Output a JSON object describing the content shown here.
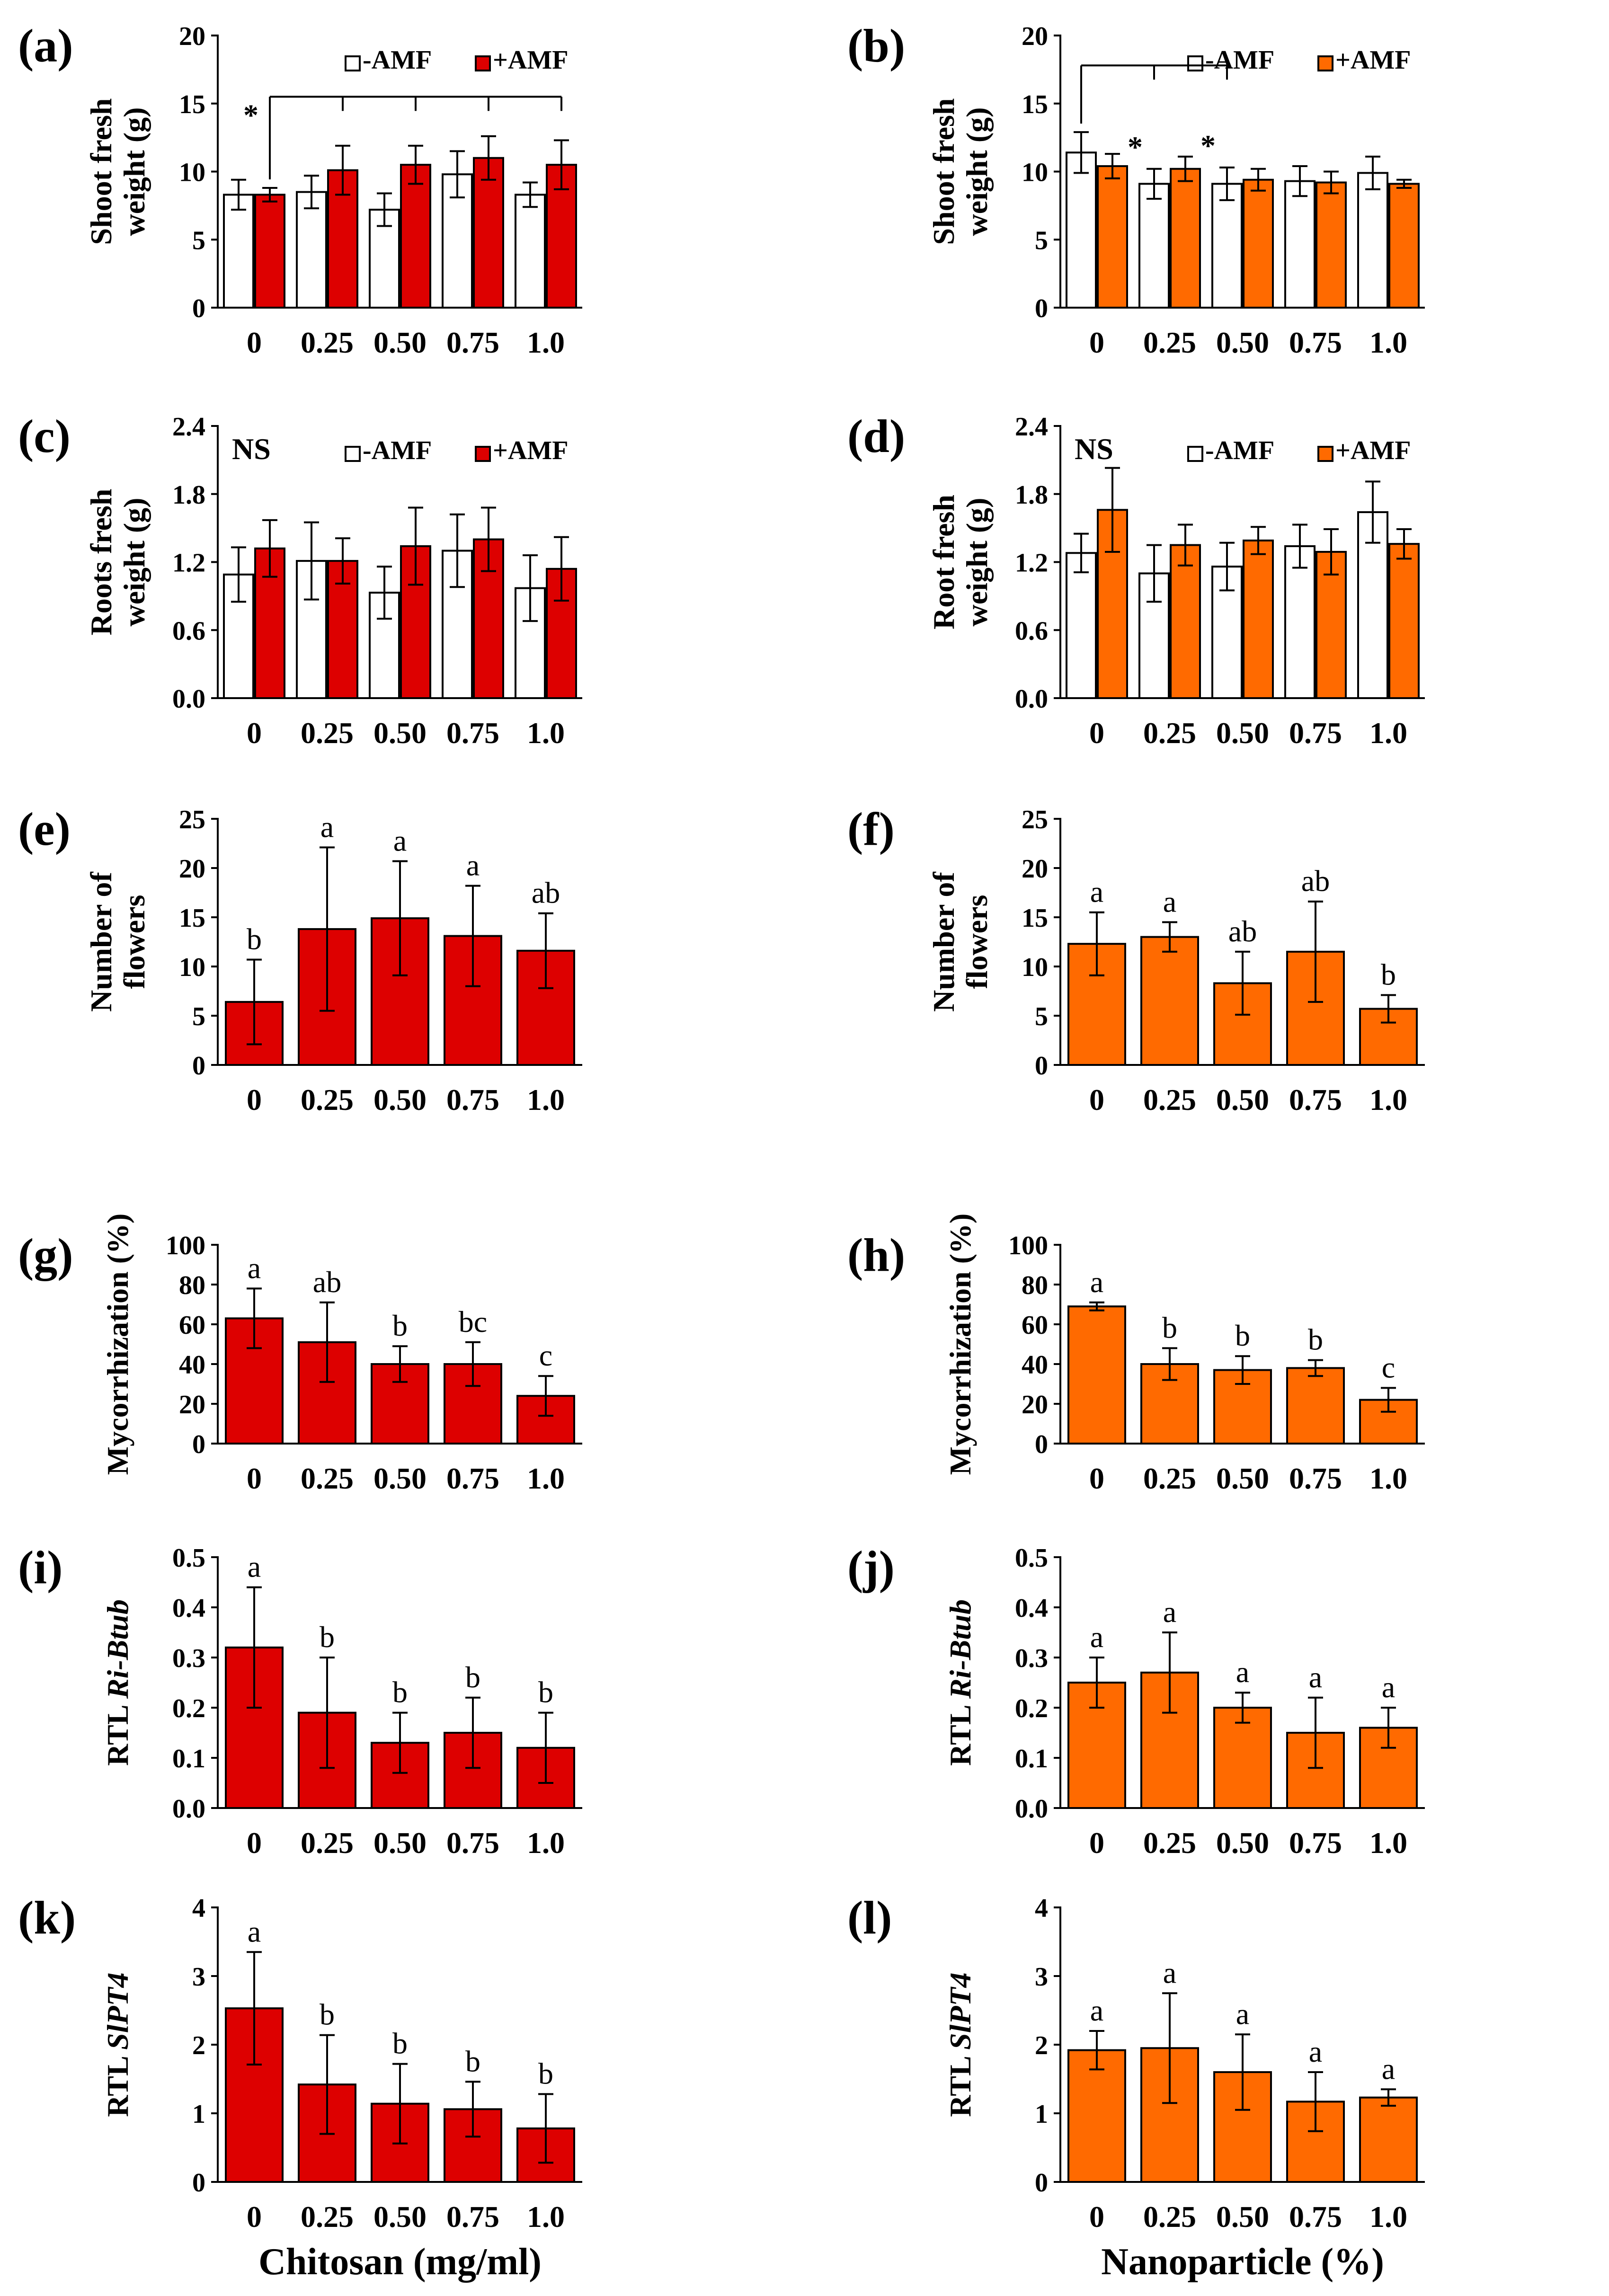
{
  "colors": {
    "red": "#DD0000",
    "orange": "#FF6A00",
    "white": "#FFFFFF",
    "axis": "#000000"
  },
  "x_titles": {
    "left": "Chitosan (mg/ml)",
    "right": "Nanoparticle (%)"
  },
  "chart_data": [
    {
      "id": "a",
      "panel_label": "(a)",
      "type": "bar",
      "categories": [
        "0",
        "0.25",
        "0.50",
        "0.75",
        "1.0"
      ],
      "ylabel_lines": [
        "Shoot fresh",
        "weight (g)"
      ],
      "ylim": [
        0,
        20
      ],
      "yticks": [
        "0",
        "5",
        "10",
        "15",
        "20"
      ],
      "series": [
        {
          "name": "-AMF",
          "color": "white",
          "values": [
            8.3,
            8.5,
            7.2,
            9.8,
            8.3
          ],
          "errors": [
            1.1,
            1.2,
            1.2,
            1.7,
            0.9
          ]
        },
        {
          "name": "+AMF",
          "color": "red",
          "values": [
            8.3,
            10.1,
            10.5,
            11.0,
            10.5
          ],
          "errors": [
            0.5,
            1.8,
            1.4,
            1.6,
            1.8
          ]
        }
      ],
      "legend": [
        "-AMF",
        "+AMF"
      ],
      "legend_position": "top-right",
      "bracket": {
        "from": 0,
        "to": [
          1,
          2,
          3,
          4
        ],
        "level": 15.5,
        "series": 1,
        "labels": [
          {
            "text": "*",
            "at": 0
          }
        ]
      }
    },
    {
      "id": "b",
      "panel_label": "(b)",
      "type": "bar",
      "categories": [
        "0",
        "0.25",
        "0.50",
        "0.75",
        "1.0"
      ],
      "ylabel_lines": [
        "Shoot fresh",
        "weight (g)"
      ],
      "ylim": [
        0,
        20
      ],
      "yticks": [
        "0",
        "5",
        "10",
        "15",
        "20"
      ],
      "series": [
        {
          "name": "-AMF",
          "color": "white",
          "values": [
            11.4,
            9.1,
            9.1,
            9.3,
            9.9
          ],
          "errors": [
            1.5,
            1.1,
            1.2,
            1.1,
            1.2
          ]
        },
        {
          "name": "+AMF",
          "color": "orange",
          "values": [
            10.4,
            10.2,
            9.4,
            9.2,
            9.1
          ],
          "errors": [
            0.9,
            0.9,
            0.8,
            0.8,
            0.3
          ]
        }
      ],
      "legend": [
        "-AMF",
        "+AMF"
      ],
      "legend_position": "top-right",
      "bracket": {
        "from": 0,
        "to": [
          1,
          2
        ],
        "level": 17.8,
        "series": 0,
        "labels": [
          {
            "text": "*",
            "at": 1
          },
          {
            "text": "*",
            "at": 2
          }
        ]
      }
    },
    {
      "id": "c",
      "panel_label": "(c)",
      "type": "bar",
      "categories": [
        "0",
        "0.25",
        "0.50",
        "0.75",
        "1.0"
      ],
      "ylabel_lines": [
        "Roots fresh",
        "weight (g)"
      ],
      "ylim": [
        0,
        2.4
      ],
      "yticks": [
        "0.0",
        "0.6",
        "1.2",
        "1.8",
        "2.4"
      ],
      "series": [
        {
          "name": "-AMF",
          "color": "white",
          "values": [
            1.09,
            1.21,
            0.93,
            1.3,
            0.97
          ],
          "errors": [
            0.24,
            0.34,
            0.23,
            0.32,
            0.29
          ]
        },
        {
          "name": "+AMF",
          "color": "red",
          "values": [
            1.32,
            1.21,
            1.34,
            1.4,
            1.14
          ],
          "errors": [
            0.25,
            0.2,
            0.34,
            0.28,
            0.28
          ]
        }
      ],
      "legend": [
        "-AMF",
        "+AMF"
      ],
      "legend_position": "top-right",
      "note": "NS"
    },
    {
      "id": "d",
      "panel_label": "(d)",
      "type": "bar",
      "categories": [
        "0",
        "0.25",
        "0.50",
        "0.75",
        "1.0"
      ],
      "ylabel_lines": [
        "Root fresh",
        "weight (g)"
      ],
      "ylim": [
        0,
        2.4
      ],
      "yticks": [
        "0.0",
        "0.6",
        "1.2",
        "1.8",
        "2.4"
      ],
      "series": [
        {
          "name": "-AMF",
          "color": "white",
          "values": [
            1.28,
            1.1,
            1.16,
            1.34,
            1.64
          ],
          "errors": [
            0.17,
            0.25,
            0.21,
            0.19,
            0.27
          ]
        },
        {
          "name": "+AMF",
          "color": "orange",
          "values": [
            1.66,
            1.35,
            1.39,
            1.29,
            1.36
          ],
          "errors": [
            0.37,
            0.18,
            0.12,
            0.2,
            0.13
          ]
        }
      ],
      "legend": [
        "-AMF",
        "+AMF"
      ],
      "legend_position": "top-right",
      "note": "NS"
    },
    {
      "id": "e",
      "panel_label": "(e)",
      "type": "bar",
      "categories": [
        "0",
        "0.25",
        "0.50",
        "0.75",
        "1.0"
      ],
      "ylabel_lines": [
        "Number of",
        "flowers"
      ],
      "ylim": [
        0,
        25
      ],
      "yticks": [
        "0",
        "5",
        "10",
        "15",
        "20",
        "25"
      ],
      "series": [
        {
          "name": "+AMF",
          "color": "red",
          "values": [
            6.4,
            13.8,
            14.9,
            13.1,
            11.6
          ],
          "errors": [
            4.3,
            8.3,
            5.8,
            5.1,
            3.8
          ]
        }
      ],
      "letters": [
        "b",
        "a",
        "a",
        "a",
        "ab"
      ]
    },
    {
      "id": "f",
      "panel_label": "(f)",
      "type": "bar",
      "categories": [
        "0",
        "0.25",
        "0.50",
        "0.75",
        "1.0"
      ],
      "ylabel_lines": [
        "Number of",
        "flowers"
      ],
      "ylim": [
        0,
        25
      ],
      "yticks": [
        "0",
        "5",
        "10",
        "15",
        "20",
        "25"
      ],
      "series": [
        {
          "name": "+AMF",
          "color": "orange",
          "values": [
            12.3,
            13.0,
            8.3,
            11.5,
            5.7
          ],
          "errors": [
            3.2,
            1.5,
            3.2,
            5.1,
            1.4
          ]
        }
      ],
      "letters": [
        "a",
        "a",
        "ab",
        "ab",
        "b"
      ]
    },
    {
      "id": "g",
      "panel_label": "(g)",
      "type": "bar",
      "categories": [
        "0",
        "0.25",
        "0.50",
        "0.75",
        "1.0"
      ],
      "ylabel_lines": [
        "Mycorrhization (%)"
      ],
      "ylim": [
        0,
        100
      ],
      "yticks": [
        "0",
        "20",
        "40",
        "60",
        "80",
        "100"
      ],
      "series": [
        {
          "name": "+AMF",
          "color": "red",
          "values": [
            63,
            51,
            40,
            40,
            24
          ],
          "errors": [
            15,
            20,
            9,
            11,
            10
          ]
        }
      ],
      "letters": [
        "a",
        "ab",
        "b",
        "bc",
        "c"
      ]
    },
    {
      "id": "h",
      "panel_label": "(h)",
      "type": "bar",
      "categories": [
        "0",
        "0.25",
        "0.50",
        "0.75",
        "1.0"
      ],
      "ylabel_lines": [
        "Mycorrhization (%)"
      ],
      "ylim": [
        0,
        100
      ],
      "yticks": [
        "0",
        "20",
        "40",
        "60",
        "80",
        "100"
      ],
      "series": [
        {
          "name": "+AMF",
          "color": "orange",
          "values": [
            69,
            40,
            37,
            38,
            22
          ],
          "errors": [
            2,
            8,
            7,
            4,
            6
          ]
        }
      ],
      "letters": [
        "a",
        "b",
        "b",
        "b",
        "c"
      ]
    },
    {
      "id": "i",
      "panel_label": "(i)",
      "type": "bar",
      "categories": [
        "0",
        "0.25",
        "0.50",
        "0.75",
        "1.0"
      ],
      "ylabel_pre": "RTL ",
      "ylabel_ital": "Ri-Btub",
      "ylim": [
        0,
        0.5
      ],
      "yticks": [
        "0.0",
        "0.1",
        "0.2",
        "0.3",
        "0.4",
        "0.5"
      ],
      "series": [
        {
          "name": "+AMF",
          "color": "red",
          "values": [
            0.32,
            0.19,
            0.13,
            0.15,
            0.12
          ],
          "errors": [
            0.12,
            0.11,
            0.06,
            0.07,
            0.07
          ]
        }
      ],
      "letters": [
        "a",
        "b",
        "b",
        "b",
        "b"
      ]
    },
    {
      "id": "j",
      "panel_label": "(j)",
      "type": "bar",
      "categories": [
        "0",
        "0.25",
        "0.50",
        "0.75",
        "1.0"
      ],
      "ylabel_pre": "RTL ",
      "ylabel_ital": "Ri-Btub",
      "ylim": [
        0,
        0.5
      ],
      "yticks": [
        "0.0",
        "0.1",
        "0.2",
        "0.3",
        "0.4",
        "0.5"
      ],
      "series": [
        {
          "name": "+AMF",
          "color": "orange",
          "values": [
            0.25,
            0.27,
            0.2,
            0.15,
            0.16
          ],
          "errors": [
            0.05,
            0.08,
            0.03,
            0.07,
            0.04
          ]
        }
      ],
      "letters": [
        "a",
        "a",
        "a",
        "a",
        "a"
      ]
    },
    {
      "id": "k",
      "panel_label": "(k)",
      "type": "bar",
      "categories": [
        "0",
        "0.25",
        "0.50",
        "0.75",
        "1.0"
      ],
      "ylabel_pre": "RTL ",
      "ylabel_ital": "SlPT4",
      "ylim": [
        0,
        4
      ],
      "yticks": [
        "0",
        "1",
        "2",
        "3",
        "4"
      ],
      "series": [
        {
          "name": "+AMF",
          "color": "red",
          "values": [
            2.53,
            1.42,
            1.14,
            1.06,
            0.78
          ],
          "errors": [
            0.82,
            0.72,
            0.58,
            0.4,
            0.5
          ]
        }
      ],
      "letters": [
        "a",
        "b",
        "b",
        "b",
        "b"
      ],
      "xtitle_key": "left"
    },
    {
      "id": "l",
      "panel_label": "(l)",
      "type": "bar",
      "categories": [
        "0",
        "0.25",
        "0.50",
        "0.75",
        "1.0"
      ],
      "ylabel_pre": "RTL ",
      "ylabel_ital": "SlPT4",
      "ylim": [
        0,
        4
      ],
      "yticks": [
        "0",
        "1",
        "2",
        "3",
        "4"
      ],
      "series": [
        {
          "name": "+AMF",
          "color": "orange",
          "values": [
            1.92,
            1.95,
            1.6,
            1.17,
            1.23
          ],
          "errors": [
            0.28,
            0.8,
            0.55,
            0.43,
            0.12
          ]
        }
      ],
      "letters": [
        "a",
        "a",
        "a",
        "a",
        "a"
      ],
      "xtitle_key": "right"
    }
  ]
}
